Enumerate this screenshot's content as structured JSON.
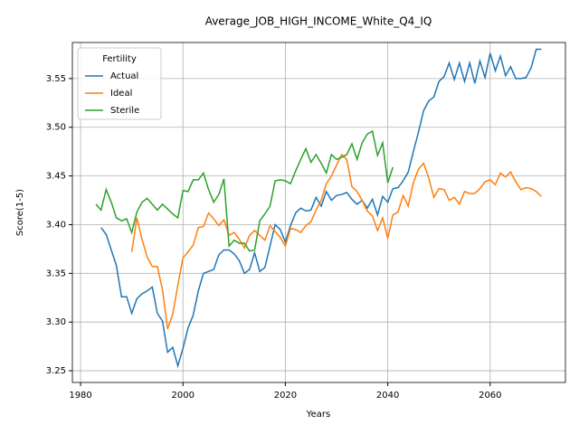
{
  "chart_data": {
    "type": "line",
    "title": "Average_JOB_HIGH_INCOME_White_Q4_IQ",
    "x_label": "Years",
    "y_label": "Score(1-5)",
    "legend_title": "Fertility",
    "legend": "upper left",
    "grid": true,
    "x": [
      1983,
      1984,
      1985,
      1986,
      1987,
      1988,
      1989,
      1990,
      1991,
      1992,
      1993,
      1994,
      1995,
      1996,
      1997,
      1998,
      1999,
      2000,
      2001,
      2002,
      2003,
      2004,
      2005,
      2006,
      2007,
      2008,
      2009,
      2010,
      2011,
      2012,
      2013,
      2014,
      2015,
      2016,
      2017,
      2018,
      2019,
      2020,
      2021,
      2022,
      2023,
      2024,
      2025,
      2026,
      2027,
      2028,
      2029,
      2030,
      2031,
      2032,
      2033,
      2034,
      2035,
      2036,
      2037,
      2038,
      2039,
      2040,
      2041,
      2042,
      2043,
      2044,
      2045,
      2046,
      2047,
      2048,
      2049,
      2050,
      2051,
      2052,
      2053,
      2054,
      2055,
      2056,
      2057,
      2058,
      2059,
      2060,
      2061,
      2062,
      2063,
      2064,
      2065,
      2066,
      2067,
      2068,
      2069,
      2070
    ],
    "series": [
      {
        "name": "Actual",
        "color": "#1f77b4",
        "values": [
          null,
          3.397,
          3.39,
          3.374,
          3.358,
          3.326,
          3.326,
          3.309,
          3.324,
          3.329,
          3.332,
          3.336,
          3.309,
          3.301,
          3.269,
          3.274,
          3.255,
          3.273,
          3.294,
          3.307,
          3.332,
          3.35,
          3.352,
          3.354,
          3.369,
          3.374,
          3.374,
          3.37,
          3.363,
          3.35,
          3.354,
          3.371,
          3.352,
          3.356,
          3.378,
          3.4,
          3.395,
          3.382,
          3.399,
          3.412,
          3.417,
          3.414,
          3.415,
          3.428,
          3.419,
          3.434,
          3.425,
          3.43,
          3.431,
          3.433,
          3.426,
          3.421,
          3.425,
          3.417,
          3.426,
          3.41,
          3.429,
          3.423,
          3.437,
          3.438,
          3.445,
          3.454,
          3.475,
          3.495,
          3.517,
          3.527,
          3.531,
          3.547,
          3.552,
          3.566,
          3.549,
          3.566,
          3.547,
          3.566,
          3.545,
          3.568,
          3.551,
          3.576,
          3.558,
          3.573,
          3.553,
          3.562,
          3.55,
          3.55,
          3.551,
          3.561,
          3.58,
          3.58
        ]
      },
      {
        "name": "Ideal",
        "color": "#ff7f0e",
        "values": [
          null,
          null,
          null,
          null,
          null,
          null,
          null,
          3.372,
          3.407,
          3.385,
          3.367,
          3.357,
          3.357,
          3.333,
          3.293,
          3.308,
          3.338,
          3.366,
          3.372,
          3.379,
          3.397,
          3.398,
          3.412,
          3.406,
          3.399,
          3.405,
          3.389,
          3.392,
          3.385,
          3.376,
          3.389,
          3.394,
          3.389,
          3.384,
          3.399,
          3.393,
          3.387,
          3.378,
          3.396,
          3.395,
          3.392,
          3.399,
          3.403,
          3.415,
          3.425,
          3.442,
          3.45,
          3.461,
          3.472,
          3.467,
          3.439,
          3.434,
          3.425,
          3.414,
          3.409,
          3.394,
          3.407,
          3.386,
          3.41,
          3.413,
          3.43,
          3.419,
          3.443,
          3.457,
          3.463,
          3.448,
          3.428,
          3.437,
          3.436,
          3.425,
          3.428,
          3.421,
          3.434,
          3.432,
          3.432,
          3.437,
          3.444,
          3.446,
          3.441,
          3.453,
          3.449,
          3.454,
          3.444,
          3.436,
          3.438,
          3.437,
          3.434,
          3.429
        ]
      },
      {
        "name": "Sterile",
        "color": "#2ca02c",
        "values": [
          3.421,
          3.415,
          3.436,
          3.423,
          3.407,
          3.404,
          3.406,
          3.392,
          3.413,
          3.423,
          3.427,
          3.421,
          3.415,
          3.421,
          3.416,
          3.411,
          3.407,
          3.435,
          3.434,
          3.446,
          3.446,
          3.453,
          3.436,
          3.423,
          3.431,
          3.447,
          3.378,
          3.384,
          3.381,
          3.381,
          3.373,
          3.374,
          3.404,
          3.411,
          3.419,
          3.445,
          3.446,
          3.445,
          3.442,
          3.455,
          3.467,
          3.478,
          3.464,
          3.472,
          3.463,
          3.453,
          3.472,
          3.467,
          3.469,
          3.472,
          3.483,
          3.467,
          3.484,
          3.493,
          3.496,
          3.471,
          3.484,
          3.443,
          3.459,
          null,
          null,
          null,
          null,
          null,
          null,
          null,
          null,
          null,
          null,
          null,
          null,
          null,
          null,
          null,
          null,
          null,
          null,
          null,
          null,
          null,
          null,
          null,
          null,
          null,
          null,
          null,
          null,
          null
        ]
      }
    ],
    "xlim": [
      1978.4,
      2074.7
    ],
    "xticks": [
      1980,
      2000,
      2020,
      2040,
      2060
    ],
    "ylim": [
      3.238,
      3.587
    ],
    "yticks": [
      3.25,
      {
        "value": 3.3,
        "label": "3.30"
      },
      3.35,
      {
        "value": 3.4,
        "label": "3.40"
      },
      3.45,
      {
        "value": 3.5,
        "label": "3.50"
      },
      3.55
    ]
  }
}
